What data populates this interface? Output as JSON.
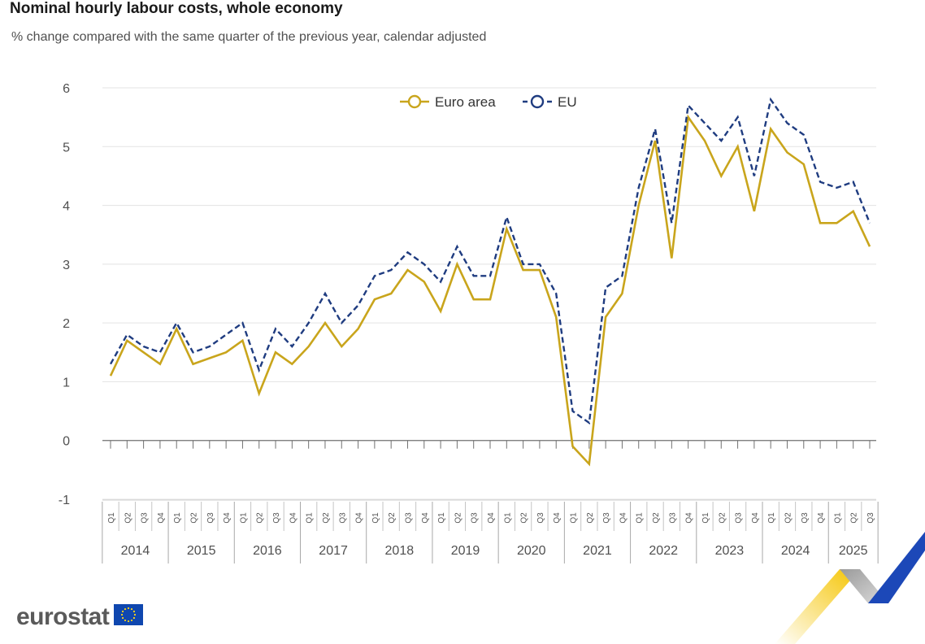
{
  "title": "Nominal hourly labour costs, whole economy",
  "subtitle": "% change compared with the same quarter of the previous year, calendar adjusted",
  "logo_text": "eurostat",
  "colors": {
    "euro_area": "#c9a51c",
    "eu": "#1f3c80",
    "grid": "#e3e3e3",
    "axis": "#707070",
    "text": "#505050"
  },
  "chart_data": {
    "type": "line",
    "title": "Nominal hourly labour costs, whole economy",
    "ylim": [
      -1,
      6
    ],
    "yticks": [
      "-1",
      "0",
      "1",
      "2",
      "3",
      "4",
      "5",
      "6"
    ],
    "years": [
      "2014",
      "2015",
      "2016",
      "2017",
      "2018",
      "2019",
      "2020",
      "2021",
      "2022",
      "2023",
      "2024",
      "2025"
    ],
    "quarters": [
      "Q1",
      "Q2",
      "Q3",
      "Q4"
    ],
    "legend": [
      "Euro area",
      "EU"
    ],
    "series": [
      {
        "name": "Euro area",
        "style": "solid",
        "values": [
          1.1,
          1.7,
          1.5,
          1.3,
          1.9,
          1.3,
          1.4,
          1.5,
          1.7,
          0.8,
          1.5,
          1.3,
          1.6,
          2.0,
          1.6,
          1.9,
          2.4,
          2.5,
          2.9,
          2.7,
          2.2,
          3.0,
          2.4,
          2.4,
          3.6,
          2.9,
          2.9,
          2.1,
          -0.1,
          -0.4,
          2.1,
          2.5,
          4.0,
          5.1,
          3.1,
          5.5,
          5.1,
          4.5,
          5.0,
          3.9,
          5.3,
          4.9,
          4.7,
          3.7,
          3.7,
          3.9,
          3.3
        ]
      },
      {
        "name": "EU",
        "style": "dashed",
        "values": [
          1.3,
          1.8,
          1.6,
          1.5,
          2.0,
          1.5,
          1.6,
          1.8,
          2.0,
          1.2,
          1.9,
          1.6,
          2.0,
          2.5,
          2.0,
          2.3,
          2.8,
          2.9,
          3.2,
          3.0,
          2.7,
          3.3,
          2.8,
          2.8,
          3.8,
          3.0,
          3.0,
          2.5,
          0.5,
          0.3,
          2.6,
          2.8,
          4.3,
          5.3,
          3.7,
          5.7,
          5.4,
          5.1,
          5.5,
          4.5,
          5.8,
          5.4,
          5.2,
          4.4,
          4.3,
          4.4,
          3.7
        ]
      }
    ]
  }
}
